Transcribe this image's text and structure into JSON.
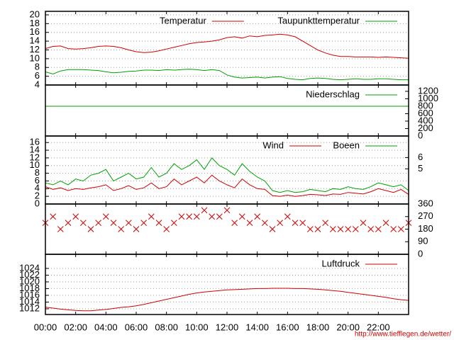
{
  "chart_data": [
    {
      "type": "line",
      "ylim": [
        4,
        20.8
      ],
      "yticks": [
        4,
        6,
        8,
        10,
        12,
        14,
        16,
        18,
        20
      ],
      "grid": true,
      "x": [
        0,
        0.5,
        1,
        1.5,
        2,
        2.5,
        3,
        3.5,
        4,
        4.5,
        5,
        5.5,
        6,
        6.5,
        7,
        7.5,
        8,
        8.5,
        9,
        9.5,
        10,
        10.5,
        11,
        11.5,
        12,
        12.5,
        13,
        13.5,
        14,
        14.5,
        15,
        15.5,
        16,
        16.5,
        17,
        17.5,
        18,
        18.5,
        19,
        19.5,
        20,
        20.5,
        21,
        21.5,
        22,
        22.5,
        23,
        23.5,
        24
      ],
      "series": [
        {
          "name": "Temperatur",
          "color": "#d00000",
          "values": [
            12.3,
            12.8,
            12.9,
            12.3,
            12.2,
            12.3,
            12.5,
            12.8,
            12.9,
            12.8,
            12.5,
            12.0,
            11.6,
            11.4,
            11.5,
            11.8,
            12.2,
            12.6,
            13.0,
            13.4,
            13.7,
            13.8,
            14.0,
            14.3,
            14.8,
            15.0,
            14.7,
            15.2,
            15.0,
            15.3,
            15.4,
            15.6,
            15.4,
            15.0,
            14.0,
            13.0,
            12.0,
            11.3,
            10.8,
            10.5,
            10.5,
            10.4,
            10.4,
            10.4,
            10.3,
            10.4,
            10.3,
            10.2,
            10.1
          ]
        },
        {
          "name": "Taupunkttemperatur",
          "color": "#00a000",
          "values": [
            7.0,
            6.5,
            7.2,
            7.5,
            7.5,
            7.5,
            7.4,
            7.3,
            7.0,
            6.8,
            6.9,
            7.1,
            7.2,
            7.4,
            7.4,
            7.3,
            7.5,
            7.4,
            7.5,
            7.6,
            7.5,
            7.3,
            7.5,
            7.3,
            6.3,
            5.8,
            5.6,
            5.7,
            5.8,
            5.6,
            5.8,
            5.9,
            5.5,
            5.3,
            5.2,
            5.5,
            5.6,
            5.5,
            5.3,
            5.2,
            5.3,
            5.4,
            5.3,
            5.3,
            5.4,
            5.4,
            5.3,
            5.2,
            5.2
          ]
        }
      ]
    },
    {
      "type": "line",
      "y2lim": [
        0,
        1370
      ],
      "y2ticks": [
        0,
        200,
        400,
        600,
        800,
        1000,
        1200
      ],
      "x": [
        0,
        24
      ],
      "series": [
        {
          "name": "Niederschlag",
          "color": "#00a000",
          "axis": "y2",
          "values": [
            800,
            800
          ]
        }
      ]
    },
    {
      "type": "line",
      "ylim": [
        0,
        17.7
      ],
      "yticks": [
        0,
        2,
        4,
        6,
        8,
        10,
        12,
        14,
        16
      ],
      "grid": true,
      "y2lim": [
        1.9,
        7.9
      ],
      "y2ticks": [
        5,
        6
      ],
      "x": [
        0,
        0.5,
        1,
        1.5,
        2,
        2.5,
        3,
        3.5,
        4,
        4.5,
        5,
        5.5,
        6,
        6.5,
        7,
        7.5,
        8,
        8.5,
        9,
        9.5,
        10,
        10.5,
        11,
        11.5,
        12,
        12.5,
        13,
        13.5,
        14,
        14.5,
        15,
        15.5,
        16,
        16.5,
        17,
        17.5,
        18,
        18.5,
        19,
        19.5,
        20,
        20.5,
        21,
        21.5,
        22,
        22.5,
        23,
        23.5,
        24
      ],
      "series": [
        {
          "name": "Wind",
          "color": "#d00000",
          "values": [
            4.5,
            3.8,
            4.2,
            3.5,
            4.0,
            3.8,
            4.2,
            4.5,
            5.0,
            3.5,
            4.0,
            4.8,
            3.8,
            4.2,
            5.5,
            4.0,
            4.5,
            6.5,
            5.0,
            6.0,
            7.0,
            5.5,
            7.5,
            6.0,
            5.0,
            4.2,
            6.5,
            5.0,
            4.0,
            3.8,
            2.2,
            2.0,
            2.3,
            2.0,
            2.2,
            2.5,
            2.4,
            2.2,
            2.6,
            2.5,
            3.0,
            2.8,
            2.6,
            3.2,
            4.0,
            3.5,
            3.0,
            3.8,
            2.5
          ]
        },
        {
          "name": "Boeen",
          "color": "#00a000",
          "values": [
            5.5,
            5.0,
            6.0,
            5.0,
            6.5,
            6.0,
            7.5,
            8.0,
            9.0,
            6.0,
            7.0,
            8.0,
            6.5,
            7.0,
            9.5,
            7.0,
            8.0,
            10.5,
            9.0,
            10.0,
            11.5,
            9.0,
            12.0,
            10.0,
            9.0,
            7.5,
            10.5,
            8.5,
            7.0,
            6.0,
            3.5,
            3.0,
            3.5,
            3.0,
            3.2,
            3.8,
            3.5,
            3.2,
            4.0,
            3.8,
            4.5,
            4.0,
            3.8,
            4.5,
            5.5,
            5.0,
            4.5,
            5.0,
            3.5
          ]
        }
      ]
    },
    {
      "type": "scatter",
      "y2lim": [
        0,
        360
      ],
      "y2ticks": [
        0,
        90,
        180,
        270,
        360
      ],
      "color": "#d00000",
      "x": [
        0,
        0.5,
        1,
        1.5,
        2,
        2.5,
        3,
        3.5,
        4,
        4.5,
        5,
        5.5,
        6,
        6.5,
        7,
        7.5,
        8,
        8.5,
        9,
        9.5,
        10,
        10.5,
        11,
        11.5,
        12,
        12.5,
        13,
        13.5,
        14,
        14.5,
        15,
        15.5,
        16,
        16.5,
        17,
        17.5,
        18,
        18.5,
        19,
        19.5,
        20,
        20.5,
        21,
        21.5,
        22,
        22.5,
        23,
        23.5,
        24
      ],
      "values": [
        225,
        270,
        180,
        225,
        270,
        225,
        180,
        225,
        270,
        225,
        180,
        225,
        180,
        225,
        270,
        225,
        180,
        225,
        270,
        270,
        270,
        315,
        270,
        270,
        315,
        225,
        270,
        225,
        270,
        225,
        180,
        225,
        270,
        225,
        225,
        180,
        180,
        225,
        180,
        180,
        180,
        180,
        225,
        180,
        180,
        225,
        180,
        180,
        225
      ]
    },
    {
      "type": "line",
      "ylim": [
        1010.3,
        1028.2
      ],
      "yticks": [
        1012,
        1014,
        1016,
        1018,
        1020,
        1022,
        1024
      ],
      "grid": true,
      "xlim": [
        0,
        24
      ],
      "xticks": [
        {
          "value": 0,
          "label": "00:00"
        },
        {
          "value": 2,
          "label": "02:00"
        },
        {
          "value": 4,
          "label": "04:00"
        },
        {
          "value": 6,
          "label": "06:00"
        },
        {
          "value": 8,
          "label": "08:00"
        },
        {
          "value": 10,
          "label": "10:00"
        },
        {
          "value": 12,
          "label": "12:00"
        },
        {
          "value": 14,
          "label": "14:00"
        },
        {
          "value": 16,
          "label": "16:00"
        },
        {
          "value": 18,
          "label": "18:00"
        },
        {
          "value": 20,
          "label": "20:00"
        },
        {
          "value": 22,
          "label": "22:00"
        }
      ],
      "x": [
        0,
        0.5,
        1,
        1.5,
        2,
        2.5,
        3,
        3.5,
        4,
        4.5,
        5,
        5.5,
        6,
        6.5,
        7,
        7.5,
        8,
        8.5,
        9,
        9.5,
        10,
        10.5,
        11,
        11.5,
        12,
        12.5,
        13,
        13.5,
        14,
        14.5,
        15,
        15.5,
        16,
        16.5,
        17,
        17.5,
        18,
        18.5,
        19,
        19.5,
        20,
        20.5,
        21,
        21.5,
        22,
        22.5,
        23,
        23.5,
        24
      ],
      "series": [
        {
          "name": "Luftdruck",
          "color": "#d00000",
          "values": [
            1012.5,
            1012.2,
            1011.9,
            1011.7,
            1011.5,
            1011.4,
            1011.4,
            1011.6,
            1011.8,
            1012.1,
            1012.4,
            1012.6,
            1012.9,
            1013.3,
            1013.8,
            1014.3,
            1014.8,
            1015.3,
            1015.8,
            1016.3,
            1016.7,
            1017.0,
            1017.2,
            1017.4,
            1017.6,
            1017.7,
            1017.8,
            1017.9,
            1018.0,
            1018.0,
            1018.1,
            1018.1,
            1018.1,
            1018.0,
            1018.0,
            1017.9,
            1017.8,
            1017.6,
            1017.4,
            1017.2,
            1016.9,
            1016.6,
            1016.3,
            1016.0,
            1015.7,
            1015.4,
            1015.0,
            1014.7,
            1014.5
          ]
        }
      ]
    }
  ],
  "footer": {
    "url": "http://www.tiefflegen.de/wetter/"
  }
}
